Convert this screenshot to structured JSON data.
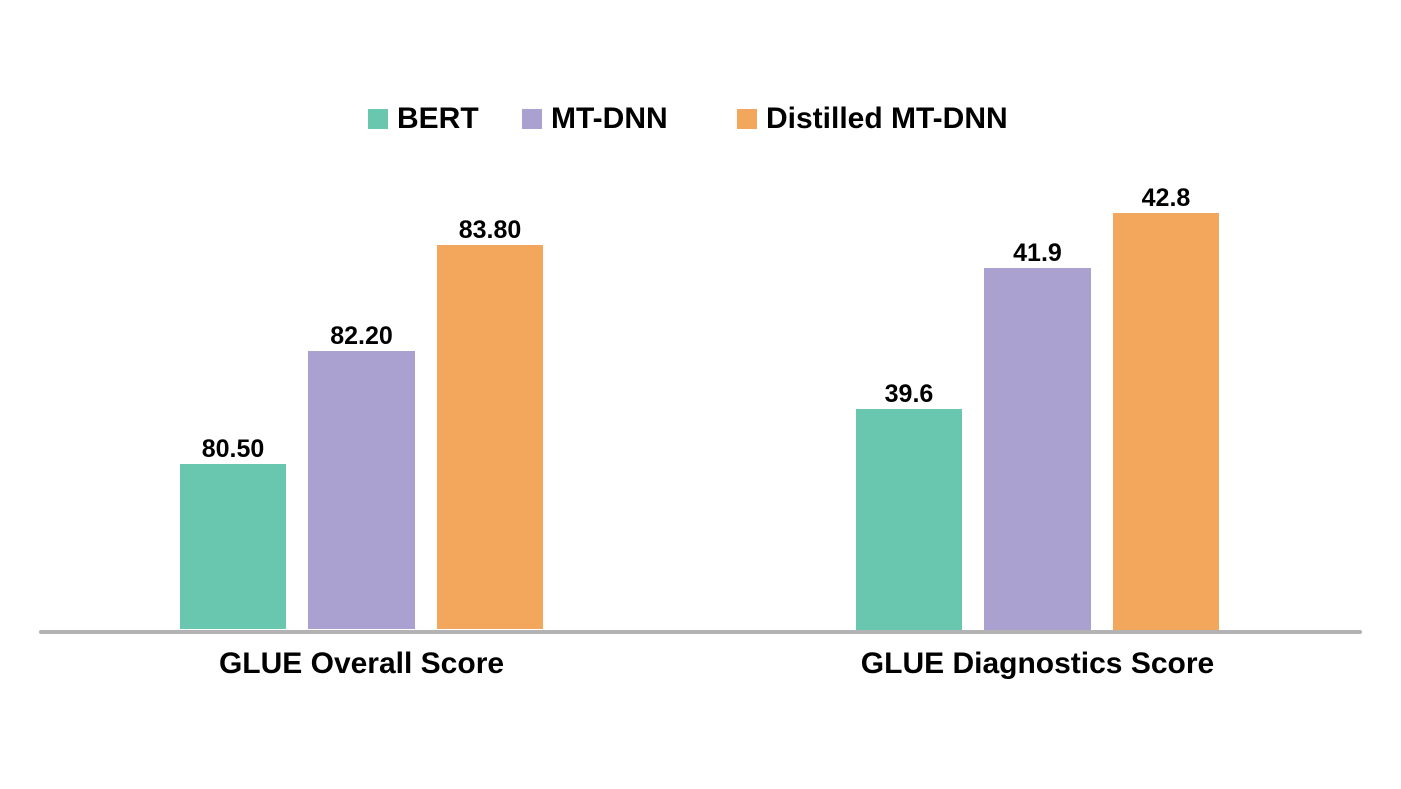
{
  "page": {
    "background": "#ffffff"
  },
  "legend": {
    "items": [
      {
        "label": "BERT",
        "color": "#68C7AE"
      },
      {
        "label": "MT-DNN",
        "color": "#ABA1D0"
      },
      {
        "label": "Distilled MT-DNN",
        "color": "#F3A75C"
      }
    ]
  },
  "chart_data": {
    "type": "bar",
    "categories": [
      "GLUE Overall Score",
      "GLUE Diagnostics Score"
    ],
    "series": [
      {
        "name": "BERT",
        "color": "#68C7AE",
        "values": [
          80.5,
          39.6
        ],
        "labels": [
          "80.50",
          "39.6"
        ]
      },
      {
        "name": "MT-DNN",
        "color": "#ABA1D0",
        "values": [
          82.2,
          41.9
        ],
        "labels": [
          "82.20",
          "41.9"
        ]
      },
      {
        "name": "Distilled MT-DNN",
        "color": "#F3A75C",
        "values": [
          83.8,
          42.8
        ],
        "labels": [
          "83.80",
          "42.8"
        ]
      }
    ],
    "group_axis_ranges": [
      [
        78,
        85.4
      ],
      [
        36,
        44
      ]
    ],
    "legend_position": "top",
    "grid": false,
    "value_labels_shown": true,
    "axis_line_color": "#B3B3B6",
    "text_color": "#000000"
  }
}
